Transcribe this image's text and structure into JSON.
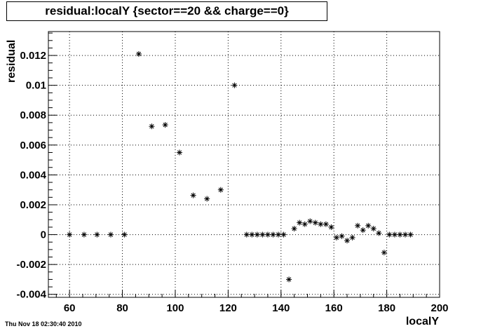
{
  "chart_data": {
    "type": "scatter",
    "title": "residual:localY {sector==20 && charge==0}",
    "xlabel": "localY",
    "ylabel": "residual",
    "xlim": [
      52,
      200
    ],
    "ylim": [
      -0.0042,
      0.0136
    ],
    "xticks": [
      60,
      80,
      100,
      120,
      140,
      160,
      180,
      200
    ],
    "yticks": [
      -0.004,
      -0.002,
      0,
      0.002,
      0.004,
      0.006,
      0.008,
      0.01,
      0.012
    ],
    "ytick_labels": [
      "-0.004",
      "-0.002",
      "0",
      "0.002",
      "0.004",
      "0.006",
      "0.008",
      "0.01",
      "0.012"
    ],
    "grid": true,
    "marker": "*",
    "points": [
      {
        "x": 60.0,
        "y": 0.0
      },
      {
        "x": 65.5,
        "y": 0.0
      },
      {
        "x": 70.4,
        "y": 0.0
      },
      {
        "x": 75.6,
        "y": 0.0
      },
      {
        "x": 80.8,
        "y": 0.0
      },
      {
        "x": 86.2,
        "y": 0.0121
      },
      {
        "x": 91.1,
        "y": 0.00725
      },
      {
        "x": 96.2,
        "y": 0.00735
      },
      {
        "x": 101.6,
        "y": 0.0055
      },
      {
        "x": 106.8,
        "y": 0.00263
      },
      {
        "x": 112.0,
        "y": 0.0024
      },
      {
        "x": 117.2,
        "y": 0.003
      },
      {
        "x": 122.4,
        "y": 0.01
      },
      {
        "x": 127.0,
        "y": 0.0
      },
      {
        "x": 129.0,
        "y": 0.0
      },
      {
        "x": 131.0,
        "y": 0.0
      },
      {
        "x": 133.0,
        "y": 0.0
      },
      {
        "x": 135.0,
        "y": 0.0
      },
      {
        "x": 137.0,
        "y": 0.0
      },
      {
        "x": 139.0,
        "y": 0.0
      },
      {
        "x": 141.0,
        "y": 0.0
      },
      {
        "x": 143.0,
        "y": -0.003
      },
      {
        "x": 145.0,
        "y": 0.0004
      },
      {
        "x": 147.0,
        "y": 0.0008
      },
      {
        "x": 149.0,
        "y": 0.0007
      },
      {
        "x": 151.0,
        "y": 0.0009
      },
      {
        "x": 153.0,
        "y": 0.0008
      },
      {
        "x": 155.0,
        "y": 0.0007
      },
      {
        "x": 157.0,
        "y": 0.0007
      },
      {
        "x": 159.0,
        "y": 0.0005
      },
      {
        "x": 161.0,
        "y": -0.0002
      },
      {
        "x": 163.0,
        "y": -0.0001
      },
      {
        "x": 165.0,
        "y": -0.0004
      },
      {
        "x": 167.0,
        "y": -0.0002
      },
      {
        "x": 169.0,
        "y": 0.0006
      },
      {
        "x": 171.0,
        "y": 0.0003
      },
      {
        "x": 173.0,
        "y": 0.0006
      },
      {
        "x": 175.0,
        "y": 0.0004
      },
      {
        "x": 177.0,
        "y": 0.0001
      },
      {
        "x": 179.0,
        "y": -0.0012
      },
      {
        "x": 181.0,
        "y": 0.0
      },
      {
        "x": 183.0,
        "y": 0.0
      },
      {
        "x": 185.0,
        "y": 0.0
      },
      {
        "x": 187.0,
        "y": 0.0
      },
      {
        "x": 189.0,
        "y": 0.0
      }
    ]
  },
  "footer": {
    "timestamp": "Thu Nov 18 02:30:40 2010"
  }
}
